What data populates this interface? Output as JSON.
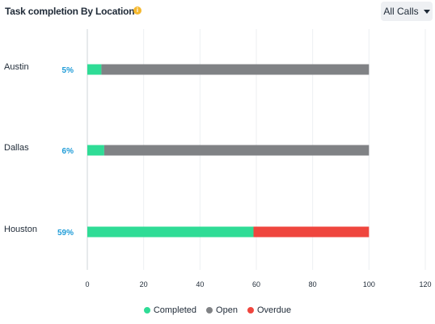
{
  "header": {
    "title": "Task completion By Location",
    "info_icon": "info-icon",
    "dropdown_label": "All Calls",
    "dropdown_icon": "caret-down-icon"
  },
  "colors": {
    "completed": "#2fdc96",
    "open": "#808285",
    "overdue": "#ef463e",
    "percent_label": "#1e9bd7",
    "grid": "#eceff2",
    "axis": "#cfd4da"
  },
  "chart_data": {
    "type": "bar",
    "orientation": "horizontal",
    "stacked": true,
    "categories": [
      "Austin",
      "Dallas",
      "Houston"
    ],
    "series": [
      {
        "name": "Completed",
        "values": [
          5,
          6,
          59
        ]
      },
      {
        "name": "Open",
        "values": [
          95,
          94,
          0
        ]
      },
      {
        "name": "Overdue",
        "values": [
          0,
          0,
          41
        ]
      }
    ],
    "percent_labels": [
      "5%",
      "6%",
      "59%"
    ],
    "xlim": [
      0,
      120
    ],
    "xticks": [
      0,
      20,
      40,
      60,
      80,
      100,
      120
    ],
    "grid": true,
    "legend": "bottom-center"
  }
}
